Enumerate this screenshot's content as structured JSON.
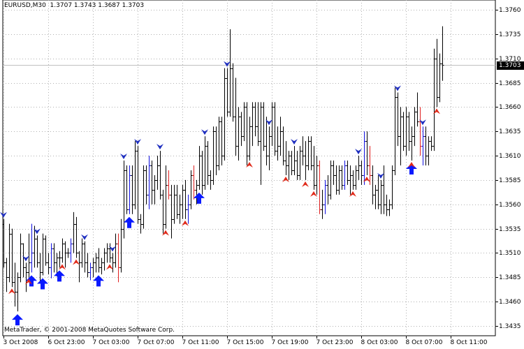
{
  "window": {
    "symbol_info": "EURUSD,M30  1.3707 1.3743 1.3687 1.3703",
    "copyright": "MetaTrader, © 2001-2008 MetaQuotes Software Corp.",
    "current_price_label": "1.3703"
  },
  "colors": {
    "bar": "#000000",
    "bull_bar": "#1010e0",
    "bear_bar": "#e02020",
    "buy_arrow": "#0a1aff",
    "down_marker": "#2030c0",
    "up_marker": "#e02a1a",
    "grid": "#b0b0b0",
    "axis": "#000000",
    "bid_line": "#c0c0c0"
  },
  "icons": {
    "buy_signal": "thick-up-arrow-icon",
    "down_fractal": "blue-chevron-down-icon",
    "up_fractal": "red-chevron-up-icon"
  },
  "chart_data": {
    "type": "ohlc",
    "symbol": "EURUSD",
    "timeframe": "M30",
    "ylim": [
      1.3425,
      1.377
    ],
    "y_ticks": [
      "1.3435",
      "1.3460",
      "1.3485",
      "1.3510",
      "1.3535",
      "1.3560",
      "1.3585",
      "1.3610",
      "1.3635",
      "1.3660",
      "1.3685",
      "1.3710",
      "1.3735",
      "1.3760"
    ],
    "x_ticks": [
      {
        "label": "3 Oct 2008",
        "bar": 0
      },
      {
        "label": "6 Oct 23:00",
        "bar": 16
      },
      {
        "label": "7 Oct 03:00",
        "bar": 32
      },
      {
        "label": "7 Oct 07:00",
        "bar": 48
      },
      {
        "label": "7 Oct 11:00",
        "bar": 64
      },
      {
        "label": "7 Oct 15:00",
        "bar": 80
      },
      {
        "label": "7 Oct 19:00",
        "bar": 96
      },
      {
        "label": "7 Oct 23:00",
        "bar": 112
      },
      {
        "label": "8 Oct 03:00",
        "bar": 128
      },
      {
        "label": "8 Oct 07:00",
        "bar": 144
      },
      {
        "label": "8 Oct 11:00",
        "bar": 160
      }
    ],
    "current_price": 1.3703,
    "bars": [
      [
        1.354,
        1.3545,
        1.3495,
        1.35
      ],
      [
        1.35,
        1.3505,
        1.347,
        1.3485
      ],
      [
        1.3485,
        1.354,
        1.348,
        1.353
      ],
      [
        1.353,
        1.3535,
        1.3475,
        1.348
      ],
      [
        1.348,
        1.35,
        1.3455,
        1.347
      ],
      [
        1.347,
        1.349,
        1.345,
        1.3485
      ],
      [
        1.3485,
        1.353,
        1.348,
        1.352
      ],
      [
        1.352,
        1.352,
        1.3485,
        1.3495
      ],
      [
        1.3495,
        1.35,
        1.347,
        1.349
      ],
      [
        1.349,
        1.353,
        1.3485,
        1.35
      ],
      [
        1.35,
        1.354,
        1.349,
        1.351
      ],
      [
        1.351,
        1.3538,
        1.3495,
        1.3525
      ],
      [
        1.3525,
        1.3528,
        1.3495,
        1.35
      ],
      [
        1.35,
        1.351,
        1.348,
        1.349
      ],
      [
        1.349,
        1.353,
        1.3487,
        1.3525
      ],
      [
        1.3525,
        1.3528,
        1.3497,
        1.35
      ],
      [
        1.35,
        1.351,
        1.3488,
        1.3495
      ],
      [
        1.3495,
        1.352,
        1.3484,
        1.3515
      ],
      [
        1.3515,
        1.352,
        1.349,
        1.35
      ],
      [
        1.35,
        1.351,
        1.3486,
        1.3505
      ],
      [
        1.3505,
        1.3512,
        1.3495,
        1.3505
      ],
      [
        1.3505,
        1.3525,
        1.35,
        1.352
      ],
      [
        1.352,
        1.3522,
        1.3495,
        1.351
      ],
      [
        1.351,
        1.3515,
        1.3505,
        1.351
      ],
      [
        1.351,
        1.3525,
        1.35,
        1.352
      ],
      [
        1.352,
        1.3552,
        1.351,
        1.354
      ],
      [
        1.354,
        1.3547,
        1.3505,
        1.351
      ],
      [
        1.351,
        1.3512,
        1.348,
        1.35
      ],
      [
        1.35,
        1.3525,
        1.3495,
        1.352
      ],
      [
        1.352,
        1.3522,
        1.349,
        1.35
      ],
      [
        1.35,
        1.351,
        1.3485,
        1.349
      ],
      [
        1.349,
        1.35,
        1.3482,
        1.3495
      ],
      [
        1.3495,
        1.3505,
        1.3485,
        1.35
      ],
      [
        1.35,
        1.351,
        1.349,
        1.3505
      ],
      [
        1.3505,
        1.3515,
        1.349,
        1.3495
      ],
      [
        1.3495,
        1.3505,
        1.3488,
        1.35
      ],
      [
        1.35,
        1.3515,
        1.3492,
        1.351
      ],
      [
        1.351,
        1.352,
        1.35,
        1.3515
      ],
      [
        1.3515,
        1.352,
        1.35,
        1.3505
      ],
      [
        1.3505,
        1.351,
        1.349,
        1.35
      ],
      [
        1.35,
        1.353,
        1.3495,
        1.352
      ],
      [
        1.352,
        1.353,
        1.348,
        1.3495
      ],
      [
        1.3495,
        1.3545,
        1.349,
        1.3535
      ],
      [
        1.3535,
        1.3605,
        1.3525,
        1.3595
      ],
      [
        1.3595,
        1.36,
        1.355,
        1.3555
      ],
      [
        1.3555,
        1.36,
        1.355,
        1.359
      ],
      [
        1.359,
        1.36,
        1.355,
        1.356
      ],
      [
        1.356,
        1.3625,
        1.3555,
        1.3615
      ],
      [
        1.3615,
        1.362,
        1.354,
        1.3545
      ],
      [
        1.3545,
        1.355,
        1.353,
        1.354
      ],
      [
        1.354,
        1.36,
        1.3535,
        1.3595
      ],
      [
        1.3595,
        1.36,
        1.356,
        1.357
      ],
      [
        1.357,
        1.361,
        1.3555,
        1.36
      ],
      [
        1.36,
        1.3605,
        1.356,
        1.3575
      ],
      [
        1.3575,
        1.359,
        1.356,
        1.3585
      ],
      [
        1.3585,
        1.361,
        1.3575,
        1.36
      ],
      [
        1.36,
        1.3615,
        1.3565,
        1.357
      ],
      [
        1.357,
        1.3575,
        1.353,
        1.354
      ],
      [
        1.354,
        1.36,
        1.3535,
        1.358
      ],
      [
        1.358,
        1.3595,
        1.3565,
        1.357
      ],
      [
        1.357,
        1.358,
        1.3525,
        1.3545
      ],
      [
        1.3545,
        1.358,
        1.354,
        1.357
      ],
      [
        1.357,
        1.358,
        1.3545,
        1.355
      ],
      [
        1.355,
        1.357,
        1.354,
        1.356
      ],
      [
        1.356,
        1.358,
        1.3545,
        1.3575
      ],
      [
        1.3575,
        1.3585,
        1.3545,
        1.3555
      ],
      [
        1.3555,
        1.357,
        1.354,
        1.356
      ],
      [
        1.356,
        1.3595,
        1.3555,
        1.359
      ],
      [
        1.359,
        1.36,
        1.3565,
        1.3575
      ],
      [
        1.3575,
        1.3585,
        1.356,
        1.358
      ],
      [
        1.358,
        1.362,
        1.3575,
        1.361
      ],
      [
        1.361,
        1.3615,
        1.357,
        1.358
      ],
      [
        1.358,
        1.363,
        1.3575,
        1.362
      ],
      [
        1.362,
        1.3625,
        1.358,
        1.359
      ],
      [
        1.359,
        1.3595,
        1.3575,
        1.3585
      ],
      [
        1.3585,
        1.364,
        1.358,
        1.3635
      ],
      [
        1.3635,
        1.364,
        1.359,
        1.36
      ],
      [
        1.36,
        1.365,
        1.3595,
        1.3645
      ],
      [
        1.3645,
        1.365,
        1.36,
        1.361
      ],
      [
        1.361,
        1.37,
        1.3605,
        1.369
      ],
      [
        1.369,
        1.37,
        1.365,
        1.3655
      ],
      [
        1.3655,
        1.374,
        1.365,
        1.37
      ],
      [
        1.37,
        1.3705,
        1.3645,
        1.365
      ],
      [
        1.365,
        1.369,
        1.361,
        1.362
      ],
      [
        1.362,
        1.366,
        1.3605,
        1.365
      ],
      [
        1.365,
        1.3655,
        1.362,
        1.363
      ],
      [
        1.363,
        1.3665,
        1.3625,
        1.366
      ],
      [
        1.366,
        1.3665,
        1.36,
        1.361
      ],
      [
        1.361,
        1.365,
        1.3605,
        1.364
      ],
      [
        1.364,
        1.3665,
        1.362,
        1.366
      ],
      [
        1.366,
        1.3665,
        1.363,
        1.364
      ],
      [
        1.364,
        1.3665,
        1.362,
        1.3625
      ],
      [
        1.3625,
        1.3665,
        1.358,
        1.366
      ],
      [
        1.366,
        1.3665,
        1.3615,
        1.362
      ],
      [
        1.362,
        1.365,
        1.36,
        1.361
      ],
      [
        1.361,
        1.364,
        1.3595,
        1.363
      ],
      [
        1.363,
        1.3665,
        1.362,
        1.366
      ],
      [
        1.366,
        1.3665,
        1.361,
        1.3615
      ],
      [
        1.3615,
        1.364,
        1.3605,
        1.362
      ],
      [
        1.362,
        1.365,
        1.361,
        1.3635
      ],
      [
        1.3635,
        1.364,
        1.36,
        1.3605
      ],
      [
        1.3605,
        1.3625,
        1.359,
        1.36
      ],
      [
        1.36,
        1.3615,
        1.3585,
        1.361
      ],
      [
        1.361,
        1.3615,
        1.359,
        1.3595
      ],
      [
        1.3595,
        1.362,
        1.359,
        1.3605
      ],
      [
        1.3605,
        1.3615,
        1.3585,
        1.359
      ],
      [
        1.359,
        1.362,
        1.3585,
        1.3615
      ],
      [
        1.3615,
        1.363,
        1.36,
        1.361
      ],
      [
        1.361,
        1.3625,
        1.3585,
        1.36
      ],
      [
        1.36,
        1.363,
        1.3595,
        1.3625
      ],
      [
        1.3625,
        1.363,
        1.3595,
        1.36
      ],
      [
        1.36,
        1.362,
        1.3575,
        1.358
      ],
      [
        1.358,
        1.361,
        1.357,
        1.36
      ],
      [
        1.36,
        1.3605,
        1.355,
        1.3555
      ],
      [
        1.3555,
        1.3575,
        1.3545,
        1.356
      ],
      [
        1.356,
        1.3585,
        1.355,
        1.358
      ],
      [
        1.358,
        1.359,
        1.356,
        1.357
      ],
      [
        1.357,
        1.3605,
        1.3565,
        1.36
      ],
      [
        1.36,
        1.3605,
        1.358,
        1.359
      ],
      [
        1.359,
        1.36,
        1.357,
        1.3575
      ],
      [
        1.3575,
        1.36,
        1.357,
        1.3595
      ],
      [
        1.3595,
        1.36,
        1.3575,
        1.358
      ],
      [
        1.358,
        1.3605,
        1.3575,
        1.36
      ],
      [
        1.36,
        1.3605,
        1.358,
        1.3585
      ],
      [
        1.3585,
        1.36,
        1.357,
        1.359
      ],
      [
        1.359,
        1.3595,
        1.3575,
        1.358
      ],
      [
        1.358,
        1.36,
        1.3575,
        1.3595
      ],
      [
        1.3595,
        1.361,
        1.3585,
        1.36
      ],
      [
        1.36,
        1.3605,
        1.358,
        1.359
      ],
      [
        1.359,
        1.3635,
        1.358,
        1.3625
      ],
      [
        1.3625,
        1.3635,
        1.359,
        1.36
      ],
      [
        1.36,
        1.362,
        1.358,
        1.359
      ],
      [
        1.359,
        1.36,
        1.356,
        1.357
      ],
      [
        1.357,
        1.358,
        1.3555,
        1.3575
      ],
      [
        1.3575,
        1.359,
        1.3555,
        1.356
      ],
      [
        1.356,
        1.3585,
        1.355,
        1.358
      ],
      [
        1.358,
        1.36,
        1.355,
        1.356
      ],
      [
        1.356,
        1.357,
        1.3548,
        1.3555
      ],
      [
        1.3555,
        1.3565,
        1.3548,
        1.356
      ],
      [
        1.356,
        1.36,
        1.3555,
        1.3595
      ],
      [
        1.3595,
        1.368,
        1.359,
        1.367
      ],
      [
        1.367,
        1.3675,
        1.362,
        1.363
      ],
      [
        1.363,
        1.366,
        1.36,
        1.365
      ],
      [
        1.365,
        1.3655,
        1.3615,
        1.362
      ],
      [
        1.362,
        1.366,
        1.361,
        1.365
      ],
      [
        1.365,
        1.3655,
        1.3615,
        1.3625
      ],
      [
        1.3625,
        1.364,
        1.3605,
        1.363
      ],
      [
        1.363,
        1.366,
        1.362,
        1.3655
      ],
      [
        1.3655,
        1.3675,
        1.364,
        1.3645
      ],
      [
        1.3645,
        1.366,
        1.361,
        1.362
      ],
      [
        1.362,
        1.364,
        1.36,
        1.363
      ],
      [
        1.363,
        1.364,
        1.36,
        1.361
      ],
      [
        1.361,
        1.363,
        1.36,
        1.3625
      ],
      [
        1.3625,
        1.363,
        1.3615,
        1.362
      ],
      [
        1.362,
        1.372,
        1.3615,
        1.371
      ],
      [
        1.371,
        1.373,
        1.366,
        1.367
      ],
      [
        1.367,
        1.3715,
        1.3665,
        1.3705
      ],
      [
        1.3705,
        1.3743,
        1.3687,
        1.3703
      ]
    ],
    "buy_arrows": [
      5,
      10,
      14,
      20,
      34,
      45,
      70,
      146
    ],
    "down_markers": [
      0,
      8,
      12,
      29,
      39,
      43,
      48,
      56,
      72,
      80,
      95,
      104,
      127,
      135,
      141,
      150
    ],
    "up_markers": [
      3,
      9,
      21,
      26,
      38,
      58,
      65,
      88,
      101,
      108,
      111,
      125,
      130,
      146,
      155
    ]
  }
}
